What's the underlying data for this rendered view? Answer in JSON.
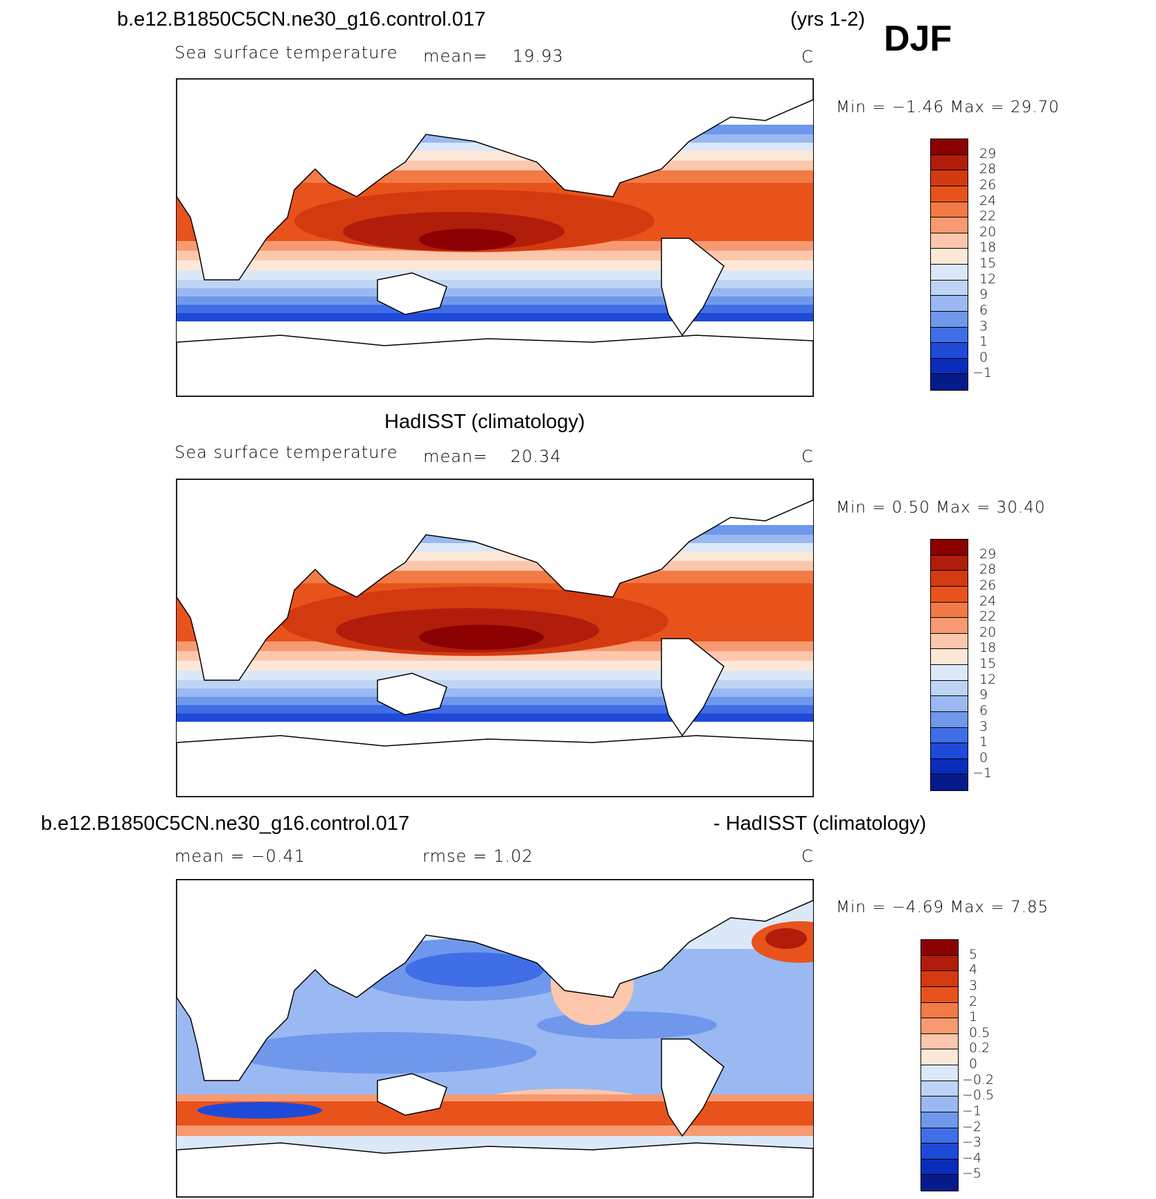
{
  "header": {
    "case_name": "b.e12.B1850C5CN.ne30_g16.control.017",
    "years": "(yrs 1-2)",
    "season": "DJF"
  },
  "panel1": {
    "variable": "Sea surface temperature",
    "mean_label": "mean=",
    "mean_value": "19.93",
    "units": "C",
    "minmax": "Min =   −1.46  Max =   29.70"
  },
  "panel2": {
    "title": "HadISST (climatology)",
    "variable": "Sea surface temperature",
    "mean_label": "mean=",
    "mean_value": "20.34",
    "units": "C",
    "minmax": "Min =    0.50  Max =   30.40"
  },
  "panel3": {
    "title_left": "b.e12.B1850C5CN.ne30_g16.control.017",
    "title_right": "- HadISST (climatology)",
    "mean_text": "mean =   −0.41",
    "rmse_text": "rmse =    1.02",
    "units": "C",
    "minmax": "Min =   −4.69  Max =    7.85"
  },
  "chart_data": [
    {
      "type": "heatmap",
      "title": "b.e12.B1850C5CN.ne30_g16.control.017 (yrs 1-2) DJF",
      "subtitle": "Sea surface temperature",
      "units": "C",
      "mean": 19.93,
      "min": -1.46,
      "max": 29.7,
      "colorbar_levels": [
        "29",
        "28",
        "26",
        "24",
        "22",
        "20",
        "18",
        "15",
        "12",
        "9",
        "6",
        "3",
        "1",
        "0",
        "−1"
      ],
      "colorbar_colors": [
        "#8b0000",
        "#b01d0a",
        "#d43a10",
        "#e8531c",
        "#f27a45",
        "#f79a72",
        "#fcc7ac",
        "#fde8d8",
        "#dbe8f8",
        "#bed4f5",
        "#9ab9f2",
        "#6f98ec",
        "#3f6ee6",
        "#1f4ad8",
        "#0a2cbc",
        "#051b8a"
      ]
    },
    {
      "type": "heatmap",
      "title": "HadISST (climatology)",
      "subtitle": "Sea surface temperature",
      "units": "C",
      "mean": 20.34,
      "min": 0.5,
      "max": 30.4,
      "colorbar_levels": [
        "29",
        "28",
        "26",
        "24",
        "22",
        "20",
        "18",
        "15",
        "12",
        "9",
        "6",
        "3",
        "1",
        "0",
        "−1"
      ],
      "colorbar_colors": [
        "#8b0000",
        "#b01d0a",
        "#d43a10",
        "#e8531c",
        "#f27a45",
        "#f79a72",
        "#fcc7ac",
        "#fde8d8",
        "#dbe8f8",
        "#bed4f5",
        "#9ab9f2",
        "#6f98ec",
        "#3f6ee6",
        "#1f4ad8",
        "#0a2cbc",
        "#051b8a"
      ]
    },
    {
      "type": "heatmap",
      "title": "b.e12.B1850C5CN.ne30_g16.control.017 - HadISST (climatology)",
      "units": "C",
      "mean": -0.41,
      "rmse": 1.02,
      "min": -4.69,
      "max": 7.85,
      "colorbar_levels": [
        "5",
        "4",
        "3",
        "2",
        "1",
        "0.5",
        "0.2",
        "0",
        "−0.2",
        "−0.5",
        "−1",
        "−2",
        "−3",
        "−4",
        "−5"
      ],
      "colorbar_colors": [
        "#8b0000",
        "#b01d0a",
        "#d43a10",
        "#e8531c",
        "#f27a45",
        "#f79a72",
        "#fcc7ac",
        "#fde8d8",
        "#dbe8f8",
        "#bed4f5",
        "#9ab9f2",
        "#6f98ec",
        "#3f6ee6",
        "#1f4ad8",
        "#0a2cbc",
        "#051b8a"
      ]
    }
  ]
}
